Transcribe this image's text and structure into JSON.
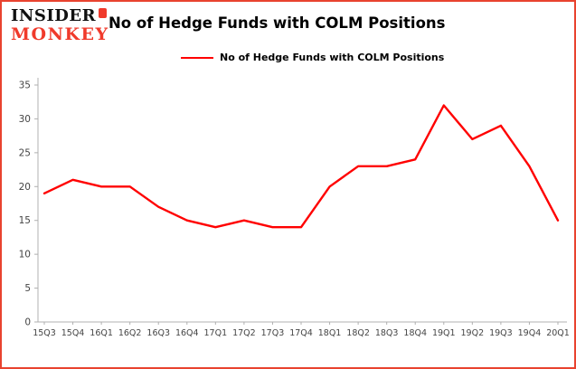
{
  "logo": {
    "line1": "INSIDER",
    "line2": "MONKEY",
    "brand_color": "#f03a2b"
  },
  "header": {
    "title": "No of Hedge Funds with COLM Positions"
  },
  "legend": {
    "label": "No of Hedge Funds with COLM Positions",
    "color": "#ff0000"
  },
  "colors": {
    "border": "#e8432f",
    "axis": "#b0b0b0",
    "tick_label": "#444444",
    "line": "#ff0000",
    "background": "#ffffff"
  },
  "chart_data": {
    "type": "line",
    "title": "No of Hedge Funds with COLM Positions",
    "categories": [
      "15Q3",
      "15Q4",
      "16Q1",
      "16Q2",
      "16Q3",
      "16Q4",
      "17Q1",
      "17Q2",
      "17Q3",
      "17Q4",
      "18Q1",
      "18Q2",
      "18Q3",
      "18Q4",
      "19Q1",
      "19Q2",
      "19Q3",
      "19Q4",
      "20Q1"
    ],
    "values": [
      19,
      21,
      20,
      20,
      17,
      15,
      14,
      15,
      14,
      14,
      20,
      23,
      23,
      24,
      32,
      27,
      29,
      23,
      15
    ],
    "xlabel": "",
    "ylabel": "",
    "ylim": [
      0,
      35
    ],
    "yticks": [
      0,
      5,
      10,
      15,
      20,
      25,
      30,
      35
    ],
    "grid": false,
    "legend_position": "top-left",
    "line_color": "#ff0000",
    "line_width": 2.4
  }
}
